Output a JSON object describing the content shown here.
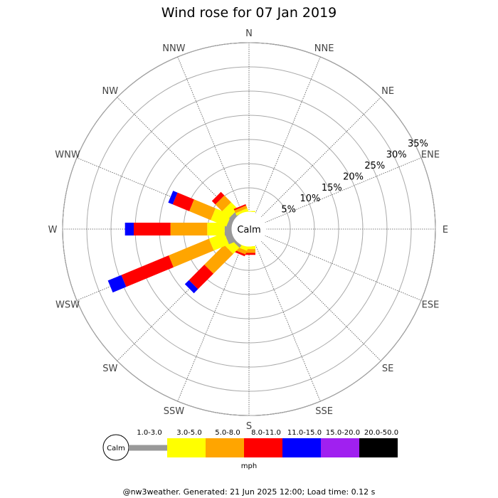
{
  "chart_data": {
    "type": "windrose",
    "title": "Wind rose for 07 Jan 2019",
    "directions": [
      "N",
      "NNE",
      "NE",
      "ENE",
      "E",
      "ESE",
      "SE",
      "SSE",
      "S",
      "SSW",
      "SW",
      "WSW",
      "W",
      "WNW",
      "NW",
      "NNW"
    ],
    "radial_labels": [
      "5%",
      "10%",
      "15%",
      "20%",
      "25%",
      "30%",
      "35%"
    ],
    "radial_values": [
      5,
      10,
      15,
      20,
      25,
      30,
      35
    ],
    "calm_label": "Calm",
    "bins": [
      {
        "label": "1.0-3.0",
        "color": "#999999"
      },
      {
        "label": "3.0-5.0",
        "color": "#ffff00"
      },
      {
        "label": "5.0-8.0",
        "color": "#ffa500"
      },
      {
        "label": "8.0-11.0",
        "color": "#ff0000"
      },
      {
        "label": "11.0-15.0",
        "color": "#0000ff"
      },
      {
        "label": "15.0-20.0",
        "color": "#a020f0"
      },
      {
        "label": "20.0-50.0",
        "color": "#000000"
      }
    ],
    "unit_label": "mph",
    "series": [
      {
        "direction": "N",
        "values": [
          0.0,
          0.2,
          0.0,
          0.0,
          0.0,
          0.0,
          0.0
        ]
      },
      {
        "direction": "NNE",
        "values": [
          0.0,
          0.0,
          0.0,
          0.0,
          0.0,
          0.0,
          0.0
        ]
      },
      {
        "direction": "NE",
        "values": [
          0.0,
          0.0,
          0.0,
          0.0,
          0.0,
          0.0,
          0.0
        ]
      },
      {
        "direction": "ENE",
        "values": [
          0.0,
          0.0,
          0.0,
          0.0,
          0.0,
          0.0,
          0.0
        ]
      },
      {
        "direction": "E",
        "values": [
          0.0,
          0.0,
          0.0,
          0.0,
          0.0,
          0.0,
          0.0
        ]
      },
      {
        "direction": "ESE",
        "values": [
          0.0,
          0.0,
          0.0,
          0.0,
          0.0,
          0.0,
          0.0
        ]
      },
      {
        "direction": "SE",
        "values": [
          0.0,
          0.0,
          0.0,
          0.0,
          0.0,
          0.0,
          0.0
        ]
      },
      {
        "direction": "SSE",
        "values": [
          0.0,
          0.0,
          0.0,
          0.0,
          0.0,
          0.0,
          0.0
        ]
      },
      {
        "direction": "S",
        "values": [
          0.0,
          0.6,
          0.8,
          0.4,
          0.0,
          0.0,
          0.0
        ]
      },
      {
        "direction": "SSW",
        "values": [
          0.0,
          0.8,
          0.8,
          0.4,
          0.0,
          0.0,
          0.0
        ]
      },
      {
        "direction": "SW",
        "values": [
          0.6,
          1.8,
          5.8,
          4.5,
          1.2,
          0.0,
          0.0
        ]
      },
      {
        "direction": "WSW",
        "values": [
          1.5,
          3.4,
          9.0,
          10.6,
          3.0,
          0.0,
          0.0
        ]
      },
      {
        "direction": "W",
        "values": [
          1.5,
          3.6,
          7.6,
          7.6,
          1.8,
          0.0,
          0.0
        ]
      },
      {
        "direction": "WNW",
        "values": [
          1.0,
          3.5,
          4.8,
          3.7,
          1.0,
          0.0,
          0.0
        ]
      },
      {
        "direction": "NW",
        "values": [
          1.0,
          2.0,
          2.0,
          1.0,
          0.0,
          0.0,
          0.0
        ]
      },
      {
        "direction": "NNW",
        "values": [
          0.0,
          0.6,
          0.6,
          0.3,
          0.0,
          0.0,
          0.0
        ]
      }
    ],
    "rmax": 35,
    "grid": true
  },
  "footer": "@nw3weather. Generated: 21 Jun 2025 12:00; Load time: 0.12 s"
}
